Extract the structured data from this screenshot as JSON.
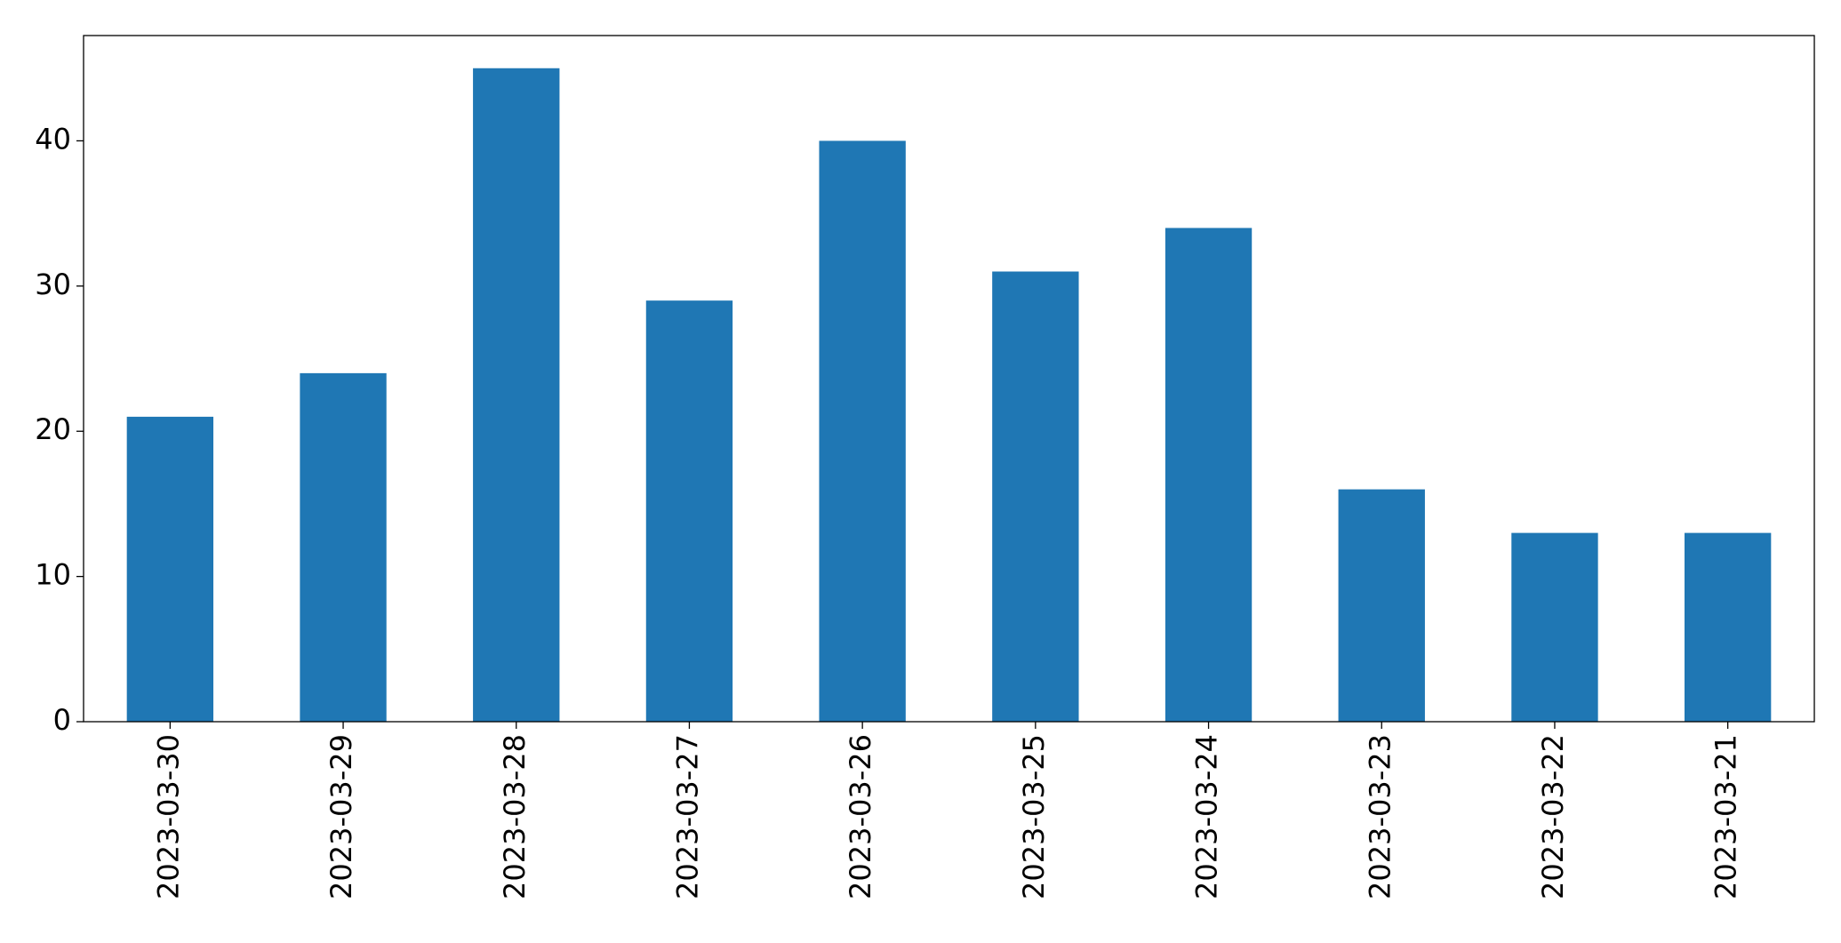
{
  "chart_data": {
    "type": "bar",
    "categories": [
      "2023-03-30",
      "2023-03-29",
      "2023-03-28",
      "2023-03-27",
      "2023-03-26",
      "2023-03-25",
      "2023-03-24",
      "2023-03-23",
      "2023-03-22",
      "2023-03-21"
    ],
    "values": [
      21,
      24,
      45,
      29,
      40,
      31,
      34,
      16,
      13,
      13
    ],
    "color": "#1f77b4",
    "ylim": [
      0,
      47.25
    ],
    "yticks": [
      0,
      10,
      20,
      30,
      40
    ],
    "grid": false
  }
}
